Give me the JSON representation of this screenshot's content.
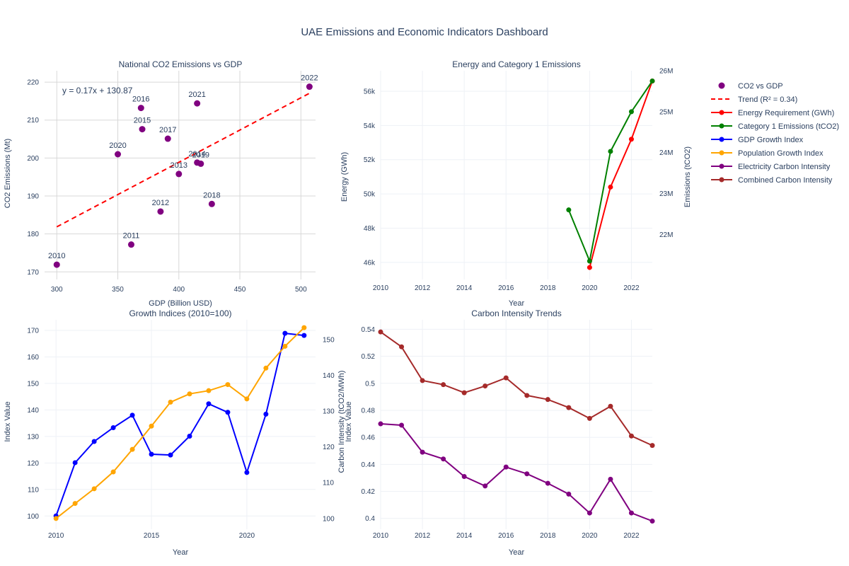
{
  "title": "UAE Emissions and Economic Indicators Dashboard",
  "legend": {
    "items": [
      {
        "label": "CO2 vs GDP",
        "color": "#800080",
        "kind": "marker"
      },
      {
        "label": "Trend (R² = 0.34)",
        "color": "#ff0000",
        "kind": "dash"
      },
      {
        "label": "Energy Requirement (GWh)",
        "color": "#ff0000",
        "kind": "linemarker"
      },
      {
        "label": "Category 1 Emissions (tCO2)",
        "color": "#008000",
        "kind": "linemarker"
      },
      {
        "label": "GDP Growth Index",
        "color": "#0000ff",
        "kind": "linemarker"
      },
      {
        "label": "Population Growth Index",
        "color": "#ffa500",
        "kind": "linemarker"
      },
      {
        "label": "Electricity Carbon Intensity",
        "color": "#800080",
        "kind": "linemarker"
      },
      {
        "label": "Combined Carbon Intensity",
        "color": "#a52a2a",
        "kind": "linemarker"
      }
    ]
  },
  "chart_data": [
    {
      "type": "scatter",
      "title": "National CO2 Emissions vs GDP",
      "xlabel": "GDP (Billion USD)",
      "ylabel": "CO2 Emissions (Mt)",
      "xlim": [
        290,
        512
      ],
      "ylim": [
        168,
        223
      ],
      "xticks": [
        "300",
        "350",
        "400",
        "450",
        "500"
      ],
      "xtick_values": [
        300,
        350,
        400,
        450,
        500
      ],
      "yticks": [
        "170",
        "180",
        "190",
        "200",
        "210",
        "220"
      ],
      "ytick_values": [
        170,
        180,
        190,
        200,
        210,
        220
      ],
      "annotation": "y = 0.17x + 130.87",
      "trend": {
        "slope": 0.17,
        "intercept": 130.87,
        "x_range": [
          300,
          507
        ]
      },
      "points": [
        {
          "label": "2010",
          "x": 300,
          "y": 171.9
        },
        {
          "label": "2011",
          "x": 361,
          "y": 177.2
        },
        {
          "label": "2012",
          "x": 385,
          "y": 185.9
        },
        {
          "label": "2013",
          "x": 400,
          "y": 195.8
        },
        {
          "label": "2014",
          "x": 415,
          "y": 198.8
        },
        {
          "label": "2015",
          "x": 370,
          "y": 207.6
        },
        {
          "label": "2016",
          "x": 369,
          "y": 213.2
        },
        {
          "label": "2017",
          "x": 391,
          "y": 205.1
        },
        {
          "label": "2018",
          "x": 427,
          "y": 187.9
        },
        {
          "label": "2019",
          "x": 418,
          "y": 198.5
        },
        {
          "label": "2020",
          "x": 350,
          "y": 201.0
        },
        {
          "label": "2021",
          "x": 415,
          "y": 214.4
        },
        {
          "label": "2022",
          "x": 507,
          "y": 218.8
        }
      ]
    },
    {
      "type": "line",
      "title": "Energy and Category 1 Emissions",
      "xlabel": "Year",
      "ylabel": "Energy (GWh)",
      "y2label": "Emissions (tCO2)",
      "xlim": [
        2010,
        2023
      ],
      "ylim": [
        45000,
        57200
      ],
      "y2lim": [
        20900000,
        26000000
      ],
      "xticks": [
        "2010",
        "2012",
        "2014",
        "2016",
        "2018",
        "2020",
        "2022"
      ],
      "xtick_values": [
        2010,
        2012,
        2014,
        2016,
        2018,
        2020,
        2022
      ],
      "yticks": [
        "46k",
        "48k",
        "50k",
        "52k",
        "54k",
        "56k"
      ],
      "ytick_values": [
        46000,
        48000,
        50000,
        52000,
        54000,
        56000
      ],
      "y2ticks": [
        "22M",
        "23M",
        "24M",
        "25M",
        "26M"
      ],
      "y2tick_values": [
        22000000,
        23000000,
        24000000,
        25000000,
        26000000
      ],
      "series": [
        {
          "name": "Energy Requirement (GWh)",
          "color": "#ff0000",
          "axis": "y",
          "x": [
            2020,
            2021,
            2022,
            2023
          ],
          "values": [
            45700,
            50400,
            53200,
            56600
          ]
        },
        {
          "name": "Category 1 Emissions (tCO2)",
          "color": "#008000",
          "axis": "y2",
          "x": [
            2019,
            2020,
            2021,
            2022,
            2023
          ],
          "values": [
            22600000,
            21350000,
            24030000,
            25000000,
            25750000
          ]
        }
      ]
    },
    {
      "type": "line",
      "title": "Growth Indices (2010=100)",
      "xlabel": "Year",
      "ylabel": "Index Value",
      "y2label": "Index Value",
      "xlim": [
        2009.4,
        2023.6
      ],
      "ylim": [
        95,
        174
      ],
      "y2lim": [
        97,
        155.5
      ],
      "xticks": [
        "2010",
        "2015",
        "2020"
      ],
      "xtick_values": [
        2010,
        2015,
        2020
      ],
      "yticks": [
        "100",
        "110",
        "120",
        "130",
        "140",
        "150",
        "160",
        "170"
      ],
      "ytick_values": [
        100,
        110,
        120,
        130,
        140,
        150,
        160,
        170
      ],
      "y2ticks": [
        "100",
        "110",
        "120",
        "130",
        "140",
        "150"
      ],
      "y2tick_values": [
        100,
        110,
        120,
        130,
        140,
        150
      ],
      "series": [
        {
          "name": "GDP Growth Index",
          "color": "#0000ff",
          "axis": "y",
          "x": [
            2010,
            2011,
            2012,
            2013,
            2014,
            2015,
            2016,
            2017,
            2018,
            2019,
            2020,
            2021,
            2022,
            2023
          ],
          "values": [
            100,
            120.1,
            128.1,
            133.3,
            138.0,
            123.3,
            123.0,
            130.1,
            142.3,
            139.1,
            116.4,
            138.4,
            168.9,
            168.1
          ]
        },
        {
          "name": "Population Growth Index",
          "color": "#ffa500",
          "axis": "y2",
          "x": [
            2010,
            2011,
            2012,
            2013,
            2014,
            2015,
            2016,
            2017,
            2018,
            2019,
            2020,
            2021,
            2022,
            2023
          ],
          "values": [
            100,
            104.2,
            108.3,
            113.0,
            119.3,
            125.8,
            132.5,
            134.8,
            135.7,
            137.4,
            133.4,
            142.0,
            148.1,
            153.3
          ]
        }
      ]
    },
    {
      "type": "line",
      "title": "Carbon Intensity Trends",
      "xlabel": "Year",
      "ylabel": "Carbon Intensity (tCO2/MWh)",
      "xlim": [
        2010,
        2023
      ],
      "ylim": [
        0.392,
        0.547
      ],
      "xticks": [
        "2010",
        "2012",
        "2014",
        "2016",
        "2018",
        "2020",
        "2022"
      ],
      "xtick_values": [
        2010,
        2012,
        2014,
        2016,
        2018,
        2020,
        2022
      ],
      "yticks": [
        "0.4",
        "0.42",
        "0.44",
        "0.46",
        "0.48",
        "0.5",
        "0.52",
        "0.54"
      ],
      "ytick_values": [
        0.4,
        0.42,
        0.44,
        0.46,
        0.48,
        0.5,
        0.52,
        0.54
      ],
      "series": [
        {
          "name": "Electricity Carbon Intensity",
          "color": "#800080",
          "axis": "y",
          "x": [
            2010,
            2011,
            2012,
            2013,
            2014,
            2015,
            2016,
            2017,
            2018,
            2019,
            2020,
            2021,
            2022,
            2023
          ],
          "values": [
            0.47,
            0.469,
            0.449,
            0.444,
            0.431,
            0.424,
            0.438,
            0.433,
            0.426,
            0.418,
            0.404,
            0.429,
            0.404,
            0.398
          ]
        },
        {
          "name": "Combined Carbon Intensity",
          "color": "#a52a2a",
          "axis": "y",
          "x": [
            2010,
            2011,
            2012,
            2013,
            2014,
            2015,
            2016,
            2017,
            2018,
            2019,
            2020,
            2021,
            2022,
            2023
          ],
          "values": [
            0.538,
            0.527,
            0.502,
            0.499,
            0.493,
            0.498,
            0.504,
            0.491,
            0.488,
            0.482,
            0.474,
            0.483,
            0.461,
            0.454
          ]
        }
      ]
    }
  ]
}
